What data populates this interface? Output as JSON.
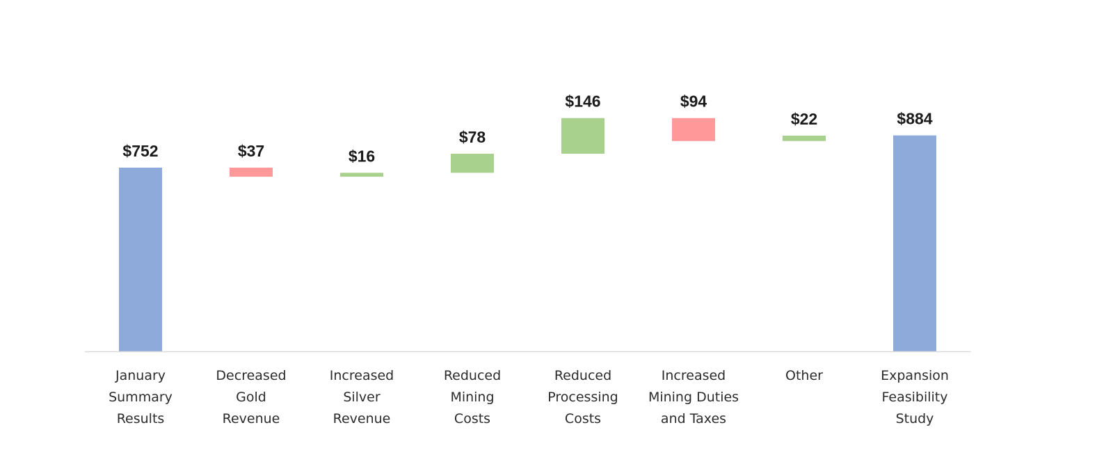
{
  "chart_data": {
    "type": "waterfall",
    "title": "",
    "xlabel": "",
    "ylabel": "",
    "ylim": [
      0,
      1000
    ],
    "grid": false,
    "legend": "none",
    "categories": [
      [
        "January",
        "Summary",
        "Results"
      ],
      [
        "Decreased",
        "Gold",
        "Revenue"
      ],
      [
        "Increased",
        "Silver",
        "Revenue"
      ],
      [
        "Reduced",
        "Mining",
        "Costs"
      ],
      [
        "Reduced",
        "Processing",
        "Costs"
      ],
      [
        "Increased",
        "Mining Duties",
        "and Taxes"
      ],
      [
        "Other"
      ],
      [
        "Expansion",
        "Feasibility",
        "Study"
      ]
    ],
    "steps": [
      {
        "kind": "total",
        "value": 752,
        "label": "$752"
      },
      {
        "kind": "decrease",
        "value": 37,
        "label": "$37"
      },
      {
        "kind": "increase",
        "value": 16,
        "label": "$16"
      },
      {
        "kind": "increase",
        "value": 78,
        "label": "$78"
      },
      {
        "kind": "increase",
        "value": 146,
        "label": "$146"
      },
      {
        "kind": "decrease",
        "value": 94,
        "label": "$94"
      },
      {
        "kind": "increase",
        "value": 22,
        "label": "$22"
      },
      {
        "kind": "total",
        "value": 884,
        "label": "$884"
      }
    ],
    "colors": {
      "total": "#8eaadb",
      "increase": "#a9d18e",
      "decrease": "#ff9999",
      "axis": "#d9d9d9"
    }
  }
}
